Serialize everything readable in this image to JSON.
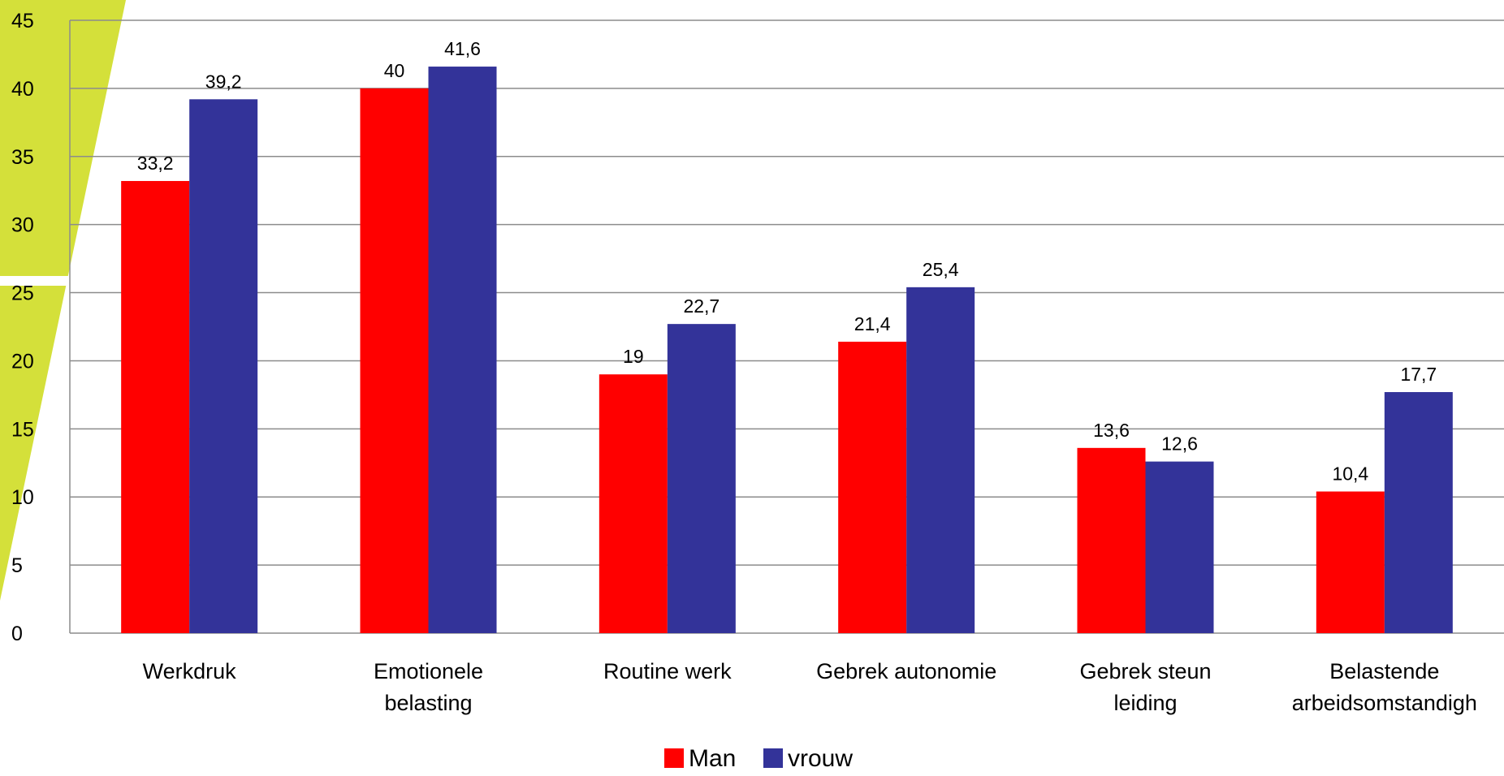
{
  "chart_data": {
    "type": "bar",
    "categories": [
      [
        "Werkdruk"
      ],
      [
        "Emotionele",
        "belasting"
      ],
      [
        "Routine werk"
      ],
      [
        "Gebrek autonomie"
      ],
      [
        "Gebrek steun",
        "leiding"
      ],
      [
        "Belastende",
        "arbeidsomstandigh"
      ]
    ],
    "series": [
      {
        "name": "Man",
        "color": "#ff0000",
        "values": [
          33.2,
          40,
          19,
          21.4,
          13.6,
          10.4
        ],
        "labels": [
          "33,2",
          "40",
          "19",
          "21,4",
          "13,6",
          "10,4"
        ]
      },
      {
        "name": "vrouw",
        "color": "#333399",
        "values": [
          39.2,
          41.6,
          22.7,
          25.4,
          12.6,
          17.7
        ],
        "labels": [
          "39,2",
          "41,6",
          "22,7",
          "25,4",
          "12,6",
          "17,7"
        ]
      }
    ],
    "ylim": [
      0,
      45
    ],
    "yticks": [
      0,
      5,
      10,
      15,
      20,
      25,
      30,
      35,
      40,
      45
    ],
    "grid": true,
    "legend": "bottom-center",
    "title": "",
    "xlabel": "",
    "ylabel": ""
  },
  "decoration": {
    "accent_color": "#d4e03a",
    "gridline_color": "#8c8c8c"
  }
}
